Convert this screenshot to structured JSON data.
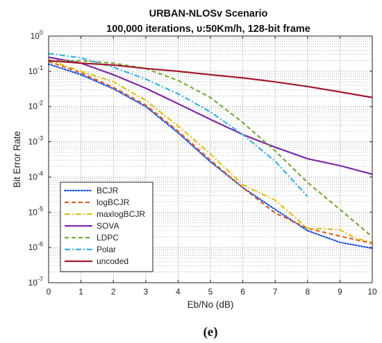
{
  "panel_label": "(e)",
  "chart_data": {
    "type": "line",
    "title": "URBAN-NLOSv Scenario",
    "subtitle": "100,000 iterations,  υ:50Km/h, 128-bit frame",
    "xlabel": "Eb/No (dB)",
    "ylabel": "Bit Error Rate",
    "xlim": [
      0,
      10
    ],
    "ylim": [
      1e-07,
      1
    ],
    "yscale": "log",
    "grid": true,
    "legend_position": "bottom-left",
    "x_ticks": [
      "0",
      "1",
      "2",
      "3",
      "4",
      "5",
      "6",
      "7",
      "8",
      "9",
      "10"
    ],
    "y_ticks": [
      {
        "base": "10",
        "exp": "0"
      },
      {
        "base": "10",
        "exp": "-1"
      },
      {
        "base": "10",
        "exp": "-2"
      },
      {
        "base": "10",
        "exp": "-3"
      },
      {
        "base": "10",
        "exp": "-4"
      },
      {
        "base": "10",
        "exp": "-5"
      },
      {
        "base": "10",
        "exp": "-6"
      },
      {
        "base": "10",
        "exp": "-7"
      }
    ],
    "series": [
      {
        "name": "BCJR",
        "color": "#1f4fd6",
        "dash": "dotted",
        "x": [
          0,
          1,
          2,
          3,
          4,
          5,
          6,
          7,
          8,
          9,
          10
        ],
        "y": [
          0.16,
          0.08,
          0.032,
          0.01,
          0.0018,
          0.00027,
          5e-05,
          1.2e-05,
          3e-06,
          1.4e-06,
          9.5e-07
        ]
      },
      {
        "name": "logBCJR",
        "color": "#d4622a",
        "dash": "dashed",
        "x": [
          0,
          1,
          2,
          3,
          4,
          5,
          6,
          7,
          8,
          9,
          10
        ],
        "y": [
          0.19,
          0.09,
          0.035,
          0.011,
          0.002,
          0.0003,
          5e-05,
          9.5e-06,
          3.5e-06,
          2.1e-06,
          1.3e-06
        ]
      },
      {
        "name": "maxlogBCJR",
        "color": "#dcc21a",
        "dash": "dashdot",
        "x": [
          0,
          1,
          2,
          3,
          4,
          5,
          6,
          7,
          8,
          8.5,
          9,
          9.5,
          10
        ],
        "y": [
          0.21,
          0.1,
          0.05,
          0.015,
          0.0028,
          0.00045,
          6e-05,
          2.2e-05,
          3.5e-06,
          3.4e-06,
          3.2e-06,
          1.8e-06,
          1.4e-06
        ]
      },
      {
        "name": "SOVA",
        "color": "#7b2aa0",
        "dash": "solid",
        "x": [
          0,
          1,
          2,
          3,
          4,
          5,
          6,
          7,
          8,
          9,
          10
        ],
        "y": [
          0.25,
          0.17,
          0.08,
          0.033,
          0.012,
          0.0043,
          0.0016,
          0.0007,
          0.00033,
          0.00021,
          0.00012
        ]
      },
      {
        "name": "LDPC",
        "color": "#79a83a",
        "dash": "dashed",
        "x": [
          0,
          1,
          2,
          3,
          4,
          5,
          6,
          7,
          8,
          9,
          10
        ],
        "y": [
          0.2,
          0.2,
          0.17,
          0.12,
          0.055,
          0.018,
          0.0035,
          0.00055,
          7e-05,
          1.2e-05,
          2e-06
        ]
      },
      {
        "name": "Polar",
        "color": "#36b3e0",
        "dash": "dashdot",
        "x": [
          0,
          1,
          2,
          3,
          4,
          5,
          6,
          7,
          8
        ],
        "y": [
          0.32,
          0.24,
          0.13,
          0.06,
          0.023,
          0.007,
          0.0016,
          0.00028,
          2.8e-05
        ]
      },
      {
        "name": "uncoded",
        "color": "#a3182a",
        "dash": "solid",
        "x": [
          0,
          1,
          2,
          3,
          4,
          5,
          6,
          7,
          8,
          9,
          10
        ],
        "y": [
          0.2,
          0.17,
          0.15,
          0.12,
          0.1,
          0.08,
          0.065,
          0.05,
          0.037,
          0.026,
          0.018
        ]
      }
    ]
  }
}
